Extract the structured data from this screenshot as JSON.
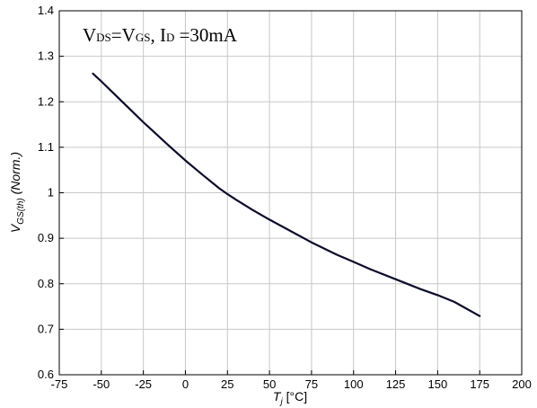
{
  "chart_data": {
    "type": "line",
    "annotation": {
      "v1": "V",
      "ds": "DS",
      "eq": "=V",
      "gs": "GS",
      "comma": ", I",
      "d": "D",
      "rest": " =30mA"
    },
    "xlabel": {
      "main": "T",
      "sub": "j",
      "unit": " [°C]"
    },
    "ylabel": {
      "main": "V",
      "sub": "GS(th)",
      "unit": " (Norm.)"
    },
    "xlim": [
      -75,
      200
    ],
    "ylim": [
      0.6,
      1.4
    ],
    "xticks": [
      -75,
      -50,
      -25,
      0,
      25,
      50,
      75,
      100,
      125,
      150,
      175,
      200
    ],
    "xtick_labels": [
      "-75",
      "-50",
      "-25",
      "0",
      "25",
      "50",
      "75",
      "100",
      "125",
      "150",
      "175",
      "200"
    ],
    "yticks": [
      0.6,
      0.7,
      0.8,
      0.9,
      1.0,
      1.1,
      1.2,
      1.3,
      1.4
    ],
    "ytick_labels": [
      "0.6",
      "0.7",
      "0.8",
      "0.9",
      "1",
      "1.1",
      "1.2",
      "1.3",
      "1.4"
    ],
    "grid": true,
    "series": [
      {
        "color": "#0b0b2a",
        "x": [
          -55,
          -50,
          -40,
          -30,
          -25,
          -20,
          -10,
          0,
          10,
          20,
          25,
          30,
          40,
          50,
          60,
          75,
          90,
          100,
          110,
          125,
          140,
          150,
          160,
          175
        ],
        "y": [
          1.262,
          1.245,
          1.209,
          1.173,
          1.155,
          1.138,
          1.104,
          1.071,
          1.04,
          1.01,
          0.997,
          0.985,
          0.962,
          0.941,
          0.921,
          0.891,
          0.864,
          0.848,
          0.832,
          0.81,
          0.788,
          0.775,
          0.76,
          0.729
        ]
      }
    ]
  }
}
